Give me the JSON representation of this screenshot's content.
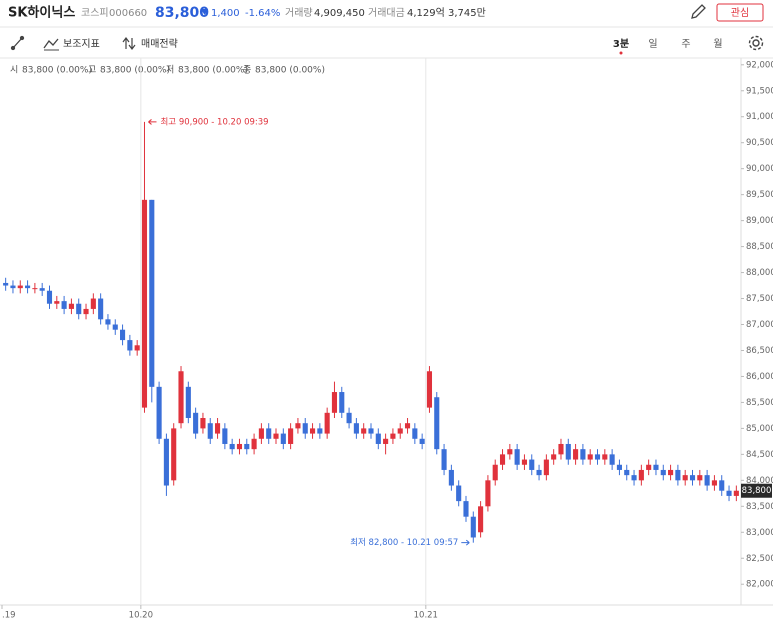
{
  "header": {
    "name": "SK하이닉스",
    "market": "코스피",
    "code": "000660",
    "price": "83,800",
    "change": "1,400",
    "change_rate": "-1.64%",
    "volume_label": "거래량",
    "volume": "4,909,450",
    "amount_label": "거래대금",
    "amount": "4,129억 3,745만",
    "favorite": "관심"
  },
  "toolbar": {
    "indicators": "보조지표",
    "strategy": "매매전략",
    "periods": [
      "3분",
      "일",
      "주",
      "월"
    ]
  },
  "ohlc_info": [
    {
      "label": "시",
      "value": "83,800 (0.00%)"
    },
    {
      "label": "고",
      "value": "83,800 (0.00%)"
    },
    {
      "label": "저",
      "value": "83,800 (0.00%)"
    },
    {
      "label": "종",
      "value": "83,800 (0.00%)"
    }
  ],
  "chart_data": {
    "type": "candlestick",
    "up_color": "#e0323c",
    "down_color": "#3a6fd8",
    "open": [
      87800,
      87750,
      87700,
      87750,
      87700,
      87700,
      87650,
      87400,
      87450,
      87300,
      87400,
      87200,
      87300,
      87500,
      87100,
      87000,
      86900,
      86700,
      86500,
      85400,
      89400,
      85800,
      84800,
      84000,
      85100,
      85800,
      85300,
      85000,
      85100,
      84900,
      85000,
      84700,
      84600,
      84700,
      84600,
      84800,
      85000,
      84800,
      84900,
      84700,
      85000,
      85100,
      84900,
      85000,
      84900,
      85300,
      85700,
      85300,
      85100,
      84900,
      85000,
      84900,
      84700,
      84800,
      84900,
      85000,
      85000,
      84800,
      85400,
      85600,
      84600,
      84200,
      83900,
      83600,
      83300,
      83000,
      83500,
      84000,
      84300,
      84500,
      84600,
      84300,
      84400,
      84200,
      84100,
      84400,
      84500,
      84700,
      84400,
      84600,
      84400,
      84500,
      84400,
      84500,
      84300,
      84200,
      84100,
      84000,
      84200,
      84300,
      84200,
      84100,
      84200,
      84000,
      84100,
      84000,
      84100,
      83900,
      84000,
      83800,
      83700
    ],
    "high": [
      87900,
      87850,
      87850,
      87850,
      87800,
      87800,
      87750,
      87550,
      87550,
      87500,
      87500,
      87400,
      87600,
      87600,
      87200,
      87100,
      87000,
      86800,
      86700,
      90900,
      89400,
      85900,
      84900,
      85100,
      86200,
      85900,
      85400,
      85300,
      85200,
      85200,
      85100,
      84800,
      84800,
      84800,
      84900,
      85100,
      85100,
      85000,
      85000,
      85100,
      85200,
      85200,
      85100,
      85100,
      85400,
      85900,
      85800,
      85400,
      85200,
      85100,
      85100,
      85000,
      84900,
      85000,
      85100,
      85200,
      85100,
      84900,
      86200,
      85700,
      84700,
      84300,
      84000,
      83700,
      83400,
      83600,
      84100,
      84400,
      84600,
      84700,
      84700,
      84500,
      84500,
      84300,
      84500,
      84600,
      84800,
      84800,
      84700,
      84700,
      84600,
      84600,
      84600,
      84600,
      84400,
      84300,
      84200,
      84300,
      84400,
      84400,
      84300,
      84300,
      84300,
      84200,
      84200,
      84200,
      84200,
      84100,
      84100,
      83900,
      83900
    ],
    "low": [
      87650,
      87600,
      87600,
      87600,
      87600,
      87550,
      87300,
      87300,
      87200,
      87200,
      87100,
      87100,
      87200,
      87000,
      86900,
      86800,
      86600,
      86400,
      86400,
      85300,
      85500,
      84700,
      83700,
      83900,
      85000,
      85100,
      84800,
      84900,
      84700,
      84800,
      84600,
      84500,
      84500,
      84500,
      84500,
      84700,
      84700,
      84700,
      84600,
      84600,
      84900,
      84800,
      84800,
      84800,
      84800,
      85200,
      85200,
      85000,
      84800,
      84800,
      84800,
      84600,
      84500,
      84700,
      84800,
      84900,
      84700,
      84600,
      85300,
      84500,
      84100,
      83800,
      83500,
      83200,
      82800,
      82900,
      83400,
      83900,
      84200,
      84400,
      84200,
      84200,
      84100,
      84000,
      84000,
      84300,
      84400,
      84300,
      84300,
      84300,
      84300,
      84300,
      84300,
      84200,
      84100,
      84000,
      83900,
      83900,
      84100,
      84100,
      84000,
      84000,
      83900,
      83900,
      83900,
      83900,
      83800,
      83800,
      83700,
      83600,
      83600
    ],
    "close": [
      87750,
      87700,
      87750,
      87700,
      87700,
      87650,
      87400,
      87450,
      87300,
      87400,
      87200,
      87300,
      87500,
      87100,
      87000,
      86900,
      86700,
      86500,
      86600,
      89400,
      85800,
      84800,
      83900,
      85000,
      86100,
      85200,
      84900,
      85200,
      84800,
      85100,
      84700,
      84600,
      84700,
      84600,
      84800,
      85000,
      84800,
      84900,
      84700,
      85000,
      85100,
      84900,
      85000,
      84900,
      85300,
      85700,
      85300,
      85100,
      84900,
      85000,
      84900,
      84700,
      84800,
      84900,
      85000,
      85100,
      84800,
      84700,
      86100,
      84600,
      84200,
      83900,
      83600,
      83300,
      82900,
      83500,
      84000,
      84300,
      84500,
      84600,
      84300,
      84400,
      84200,
      84100,
      84400,
      84500,
      84700,
      84400,
      84600,
      84400,
      84500,
      84400,
      84500,
      84300,
      84200,
      84100,
      84000,
      84200,
      84300,
      84200,
      84100,
      84200,
      84000,
      84100,
      84000,
      84100,
      83900,
      84000,
      83800,
      83700,
      83800
    ],
    "xlim": [
      -0.5,
      100.5
    ],
    "xticks": [
      {
        "value": -0.5,
        "label": ".19"
      },
      {
        "value": 18.5,
        "label": "10.20"
      },
      {
        "value": 57.5,
        "label": "10.21"
      }
    ],
    "ylim": [
      81600,
      92150
    ],
    "yticks": [
      {
        "value": 82000,
        "label": "82,000"
      },
      {
        "value": 82500,
        "label": "82,500"
      },
      {
        "value": 83000,
        "label": "83,000"
      },
      {
        "value": 83500,
        "label": "83,500"
      },
      {
        "value": 84000,
        "label": "84,000"
      },
      {
        "value": 84500,
        "label": "84,500"
      },
      {
        "value": 85000,
        "label": "85,000"
      },
      {
        "value": 85500,
        "label": "85,500"
      },
      {
        "value": 86000,
        "label": "86,000"
      },
      {
        "value": 86500,
        "label": "86,500"
      },
      {
        "value": 87000,
        "label": "87,000"
      },
      {
        "value": 87500,
        "label": "87,500"
      },
      {
        "value": 88000,
        "label": "88,000"
      },
      {
        "value": 88500,
        "label": "88,500"
      },
      {
        "value": 89000,
        "label": "89,000"
      },
      {
        "value": 89500,
        "label": "89,500"
      },
      {
        "value": 90000,
        "label": "90,000"
      },
      {
        "value": 90500,
        "label": "90,500"
      },
      {
        "value": 91000,
        "label": "91,000"
      },
      {
        "value": 91500,
        "label": "91,500"
      },
      {
        "value": 92000,
        "label": "92,000"
      }
    ],
    "price_tag": {
      "value": 83800,
      "label": "83,800"
    },
    "annotations": [
      {
        "text": "최고 90,900 - 10.20 09:39",
        "value": 90900,
        "index": 19
      },
      {
        "text": "최저 82,800 - 10.21 09:57",
        "value": 82800,
        "index": 64
      }
    ]
  }
}
